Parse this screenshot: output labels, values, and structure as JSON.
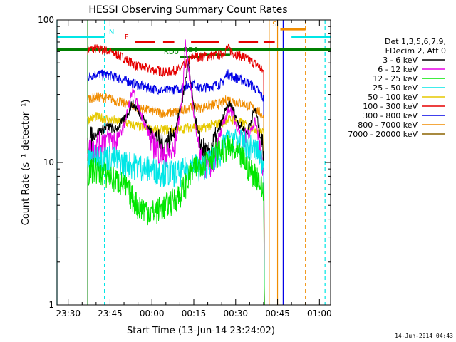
{
  "chart_data": {
    "type": "line",
    "title": "HESSI Observing Summary Count Rates",
    "xlabel": "Start Time (13-Jun-14 23:24:02)",
    "ylabel": "Count Rate (s⁻¹ detector⁻¹)",
    "y_scale": "log",
    "ylim": [
      1,
      100
    ],
    "y_ticks": [
      1,
      10,
      100
    ],
    "y_tick_labels": [
      "1",
      "10",
      "100"
    ],
    "x_tick_labels": [
      "23:30",
      "23:45",
      "00:00",
      "00:15",
      "00:30",
      "00:45",
      "01:00"
    ],
    "xlim_minutes": [
      -34,
      64
    ],
    "x_tick_minutes": [
      -30,
      -15,
      0,
      15,
      30,
      45,
      60
    ],
    "legend": {
      "position": "right",
      "header": [
        "Det 1,3,5,6,7,9,",
        "FDecim 2, Att 0"
      ],
      "entries": [
        {
          "label": "3 - 6 keV",
          "color": "#000000"
        },
        {
          "label": "6 - 12 keV",
          "color": "#e600e6"
        },
        {
          "label": "12 - 25 keV",
          "color": "#00e600"
        },
        {
          "label": "25 - 50 keV",
          "color": "#00e6e6"
        },
        {
          "label": "50 - 100 keV",
          "color": "#e6c800"
        },
        {
          "label": "100 - 300 keV",
          "color": "#e60000"
        },
        {
          "label": "300 - 800 keV",
          "color": "#0000e6"
        },
        {
          "label": "800 - 7000 keV",
          "color": "#f08c00"
        },
        {
          "label": "7000 - 20000 keV",
          "color": "#8c6400"
        }
      ]
    },
    "series": [
      {
        "name": "100 - 300 keV",
        "color": "#e60000",
        "x": [
          -23,
          -20,
          -15,
          -10,
          -5,
          0,
          5,
          10,
          15,
          17,
          20,
          25,
          27,
          29,
          32,
          35,
          38,
          40
        ],
        "y": [
          62,
          63,
          60,
          54,
          47,
          45,
          43,
          45,
          56,
          55,
          56,
          57,
          64,
          59,
          56,
          52,
          48,
          43
        ]
      },
      {
        "name": "300 - 800 keV",
        "color": "#0000e6",
        "x": [
          -23,
          -20,
          -15,
          -10,
          -5,
          0,
          5,
          10,
          15,
          17,
          20,
          25,
          27,
          29,
          32,
          35,
          38,
          40
        ],
        "y": [
          40,
          42,
          41,
          38,
          35,
          33,
          32,
          33,
          36,
          33,
          34,
          36,
          42,
          40,
          38,
          36,
          32,
          28
        ]
      },
      {
        "name": "800 - 7000 keV",
        "color": "#f08c00",
        "x": [
          -23,
          -20,
          -15,
          -10,
          -5,
          0,
          5,
          10,
          15,
          17,
          20,
          25,
          27,
          29,
          32,
          35,
          38,
          40
        ],
        "y": [
          28,
          29,
          28,
          26,
          24,
          23,
          22,
          23,
          25,
          24,
          25,
          26,
          28,
          27,
          26,
          25,
          23,
          21
        ]
      },
      {
        "name": "50 - 100 keV",
        "color": "#e6c800",
        "x": [
          -23,
          -20,
          -15,
          -10,
          -5,
          0,
          5,
          10,
          15,
          17,
          20,
          25,
          27,
          29,
          32,
          35,
          38,
          40
        ],
        "y": [
          20,
          21,
          20,
          19,
          18,
          17,
          17,
          17,
          18,
          17,
          18,
          19,
          20,
          20,
          19,
          18,
          17,
          16
        ]
      },
      {
        "name": "3 - 6 keV",
        "color": "#000000",
        "x": [
          -23,
          -20,
          -16,
          -13,
          -10,
          -7,
          -4,
          0,
          4,
          8,
          11,
          13,
          15,
          17,
          20,
          23,
          26,
          28,
          31,
          34,
          37,
          40
        ],
        "y": [
          14,
          16,
          18,
          17,
          20,
          26,
          22,
          16,
          13,
          16,
          28,
          50,
          24,
          14,
          11,
          15,
          22,
          26,
          19,
          16,
          24,
          12
        ]
      },
      {
        "name": "6 - 12 keV",
        "color": "#e600e6",
        "x": [
          -23,
          -20,
          -16,
          -13,
          -10,
          -7,
          -4,
          0,
          4,
          8,
          11,
          12,
          13,
          15,
          17,
          20,
          23,
          26,
          28,
          31,
          34,
          37,
          40
        ],
        "y": [
          12,
          13,
          15,
          14,
          18,
          32,
          22,
          14,
          11,
          12,
          30,
          70,
          48,
          22,
          12,
          9,
          12,
          20,
          24,
          17,
          14,
          20,
          9
        ]
      },
      {
        "name": "25 - 50 keV",
        "color": "#00e6e6",
        "x": [
          -23,
          -20,
          -15,
          -10,
          -5,
          0,
          5,
          10,
          15,
          17,
          20,
          25,
          27,
          29,
          32,
          35,
          38,
          40
        ],
        "y": [
          10,
          11,
          11,
          10,
          9.5,
          9,
          8.5,
          8.5,
          10,
          9,
          10,
          12,
          16,
          15,
          14,
          13,
          12,
          10
        ]
      },
      {
        "name": "12 - 25 keV",
        "color": "#00e600",
        "x": [
          -23,
          -20,
          -15,
          -10,
          -5,
          0,
          5,
          10,
          15,
          17,
          20,
          25,
          27,
          29,
          32,
          35,
          38,
          40
        ],
        "y": [
          8.5,
          9,
          8,
          7,
          5,
          4.5,
          5,
          6,
          9,
          10,
          11,
          12,
          13,
          12,
          11,
          9,
          8,
          6
        ]
      }
    ],
    "flag_lines": [
      {
        "label": "N",
        "color": "#00e6e6",
        "x": [
          -34,
          -17
        ],
        "y": 76
      },
      {
        "label": "",
        "color": "#00e6e6",
        "x": [
          50,
          64
        ],
        "y": 76
      },
      {
        "label": "F",
        "color": "#e60000",
        "x": [
          -6,
          1
        ],
        "y": 70
      },
      {
        "label": "",
        "color": "#e60000",
        "x": [
          4,
          8
        ],
        "y": 70
      },
      {
        "label": "",
        "color": "#e60000",
        "x": [
          14,
          24
        ],
        "y": 70
      },
      {
        "label": "",
        "color": "#e60000",
        "x": [
          31,
          38
        ],
        "y": 70
      },
      {
        "label": "",
        "color": "#e60000",
        "x": [
          40,
          44
        ],
        "y": 70
      },
      {
        "label": "RD0",
        "color": "#008000",
        "x": [
          17,
          28
        ],
        "y": 57
      },
      {
        "label": "RD0",
        "color": "#008000",
        "x": [
          10,
          17
        ],
        "y": 55
      },
      {
        "label": "S",
        "color": "#f08c00",
        "x": [
          46,
          55
        ],
        "y": 86
      },
      {
        "label": "",
        "color": "#008000",
        "x": [
          -34,
          64
        ],
        "y": 62
      }
    ],
    "vertical_lines": [
      {
        "color": "#00e6e6",
        "x": -34,
        "style": "solid"
      },
      {
        "color": "#00e6e6",
        "x": -17,
        "style": "dashed"
      },
      {
        "color": "#00e6e6",
        "x": 62,
        "style": "dashed"
      },
      {
        "color": "#008000",
        "x": -23,
        "style": "solid"
      },
      {
        "color": "#f08c00",
        "x": 42,
        "style": "solid"
      },
      {
        "color": "#f08c00",
        "x": 45,
        "style": "solid"
      },
      {
        "color": "#0000e6",
        "x": 47,
        "style": "solid"
      },
      {
        "color": "#f08c00",
        "x": 55,
        "style": "dashed"
      }
    ]
  },
  "footer_stamp": "14-Jun-2014 04:43"
}
